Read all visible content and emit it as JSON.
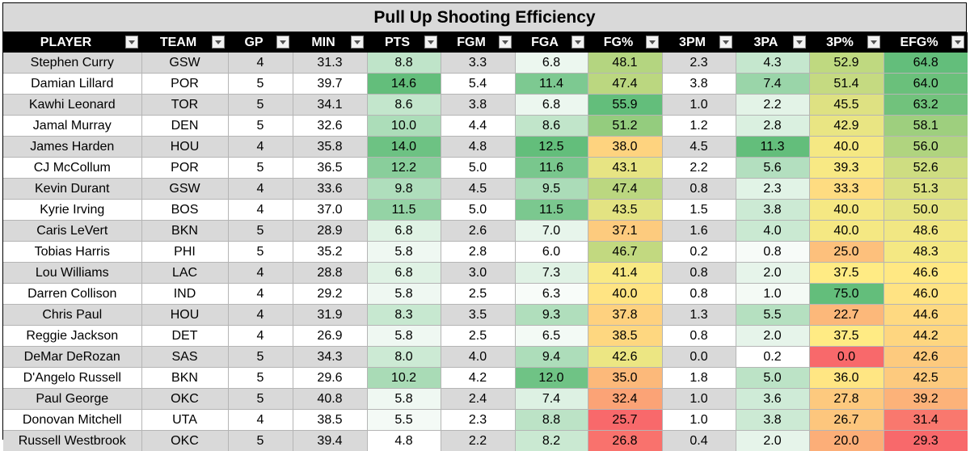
{
  "title": "Pull Up Shooting Efficiency",
  "columns": [
    "PLAYER",
    "TEAM",
    "GP",
    "MIN",
    "PTS",
    "FGM",
    "FGA",
    "FG%",
    "3PM",
    "3PA",
    "3P%",
    "EFG%"
  ],
  "heat_columns": [
    "PTS",
    "FGA",
    "FG%",
    "3PA",
    "3P%",
    "EFG%"
  ],
  "rows": [
    {
      "PLAYER": "Stephen Curry",
      "TEAM": "GSW",
      "GP": "4",
      "MIN": "31.3",
      "PTS": "8.8",
      "FGM": "3.3",
      "FGA": "6.8",
      "FG%": "48.1",
      "3PM": "2.3",
      "3PA": "4.3",
      "3P%": "52.9",
      "EFG%": "64.8"
    },
    {
      "PLAYER": "Damian Lillard",
      "TEAM": "POR",
      "GP": "5",
      "MIN": "39.7",
      "PTS": "14.6",
      "FGM": "5.4",
      "FGA": "11.4",
      "FG%": "47.4",
      "3PM": "3.8",
      "3PA": "7.4",
      "3P%": "51.4",
      "EFG%": "64.0"
    },
    {
      "PLAYER": "Kawhi Leonard",
      "TEAM": "TOR",
      "GP": "5",
      "MIN": "34.1",
      "PTS": "8.6",
      "FGM": "3.8",
      "FGA": "6.8",
      "FG%": "55.9",
      "3PM": "1.0",
      "3PA": "2.2",
      "3P%": "45.5",
      "EFG%": "63.2"
    },
    {
      "PLAYER": "Jamal Murray",
      "TEAM": "DEN",
      "GP": "5",
      "MIN": "32.6",
      "PTS": "10.0",
      "FGM": "4.4",
      "FGA": "8.6",
      "FG%": "51.2",
      "3PM": "1.2",
      "3PA": "2.8",
      "3P%": "42.9",
      "EFG%": "58.1"
    },
    {
      "PLAYER": "James Harden",
      "TEAM": "HOU",
      "GP": "4",
      "MIN": "35.8",
      "PTS": "14.0",
      "FGM": "4.8",
      "FGA": "12.5",
      "FG%": "38.0",
      "3PM": "4.5",
      "3PA": "11.3",
      "3P%": "40.0",
      "EFG%": "56.0"
    },
    {
      "PLAYER": "CJ McCollum",
      "TEAM": "POR",
      "GP": "5",
      "MIN": "36.5",
      "PTS": "12.2",
      "FGM": "5.0",
      "FGA": "11.6",
      "FG%": "43.1",
      "3PM": "2.2",
      "3PA": "5.6",
      "3P%": "39.3",
      "EFG%": "52.6"
    },
    {
      "PLAYER": "Kevin Durant",
      "TEAM": "GSW",
      "GP": "4",
      "MIN": "33.6",
      "PTS": "9.8",
      "FGM": "4.5",
      "FGA": "9.5",
      "FG%": "47.4",
      "3PM": "0.8",
      "3PA": "2.3",
      "3P%": "33.3",
      "EFG%": "51.3"
    },
    {
      "PLAYER": "Kyrie Irving",
      "TEAM": "BOS",
      "GP": "4",
      "MIN": "37.0",
      "PTS": "11.5",
      "FGM": "5.0",
      "FGA": "11.5",
      "FG%": "43.5",
      "3PM": "1.5",
      "3PA": "3.8",
      "3P%": "40.0",
      "EFG%": "50.0"
    },
    {
      "PLAYER": "Caris LeVert",
      "TEAM": "BKN",
      "GP": "5",
      "MIN": "28.9",
      "PTS": "6.8",
      "FGM": "2.6",
      "FGA": "7.0",
      "FG%": "37.1",
      "3PM": "1.6",
      "3PA": "4.0",
      "3P%": "40.0",
      "EFG%": "48.6"
    },
    {
      "PLAYER": "Tobias Harris",
      "TEAM": "PHI",
      "GP": "5",
      "MIN": "35.2",
      "PTS": "5.8",
      "FGM": "2.8",
      "FGA": "6.0",
      "FG%": "46.7",
      "3PM": "0.2",
      "3PA": "0.8",
      "3P%": "25.0",
      "EFG%": "48.3"
    },
    {
      "PLAYER": "Lou Williams",
      "TEAM": "LAC",
      "GP": "4",
      "MIN": "28.8",
      "PTS": "6.8",
      "FGM": "3.0",
      "FGA": "7.3",
      "FG%": "41.4",
      "3PM": "0.8",
      "3PA": "2.0",
      "3P%": "37.5",
      "EFG%": "46.6"
    },
    {
      "PLAYER": "Darren Collison",
      "TEAM": "IND",
      "GP": "4",
      "MIN": "29.2",
      "PTS": "5.8",
      "FGM": "2.5",
      "FGA": "6.3",
      "FG%": "40.0",
      "3PM": "0.8",
      "3PA": "1.0",
      "3P%": "75.0",
      "EFG%": "46.0"
    },
    {
      "PLAYER": "Chris Paul",
      "TEAM": "HOU",
      "GP": "4",
      "MIN": "31.9",
      "PTS": "8.3",
      "FGM": "3.5",
      "FGA": "9.3",
      "FG%": "37.8",
      "3PM": "1.3",
      "3PA": "5.5",
      "3P%": "22.7",
      "EFG%": "44.6"
    },
    {
      "PLAYER": "Reggie Jackson",
      "TEAM": "DET",
      "GP": "4",
      "MIN": "26.9",
      "PTS": "5.8",
      "FGM": "2.5",
      "FGA": "6.5",
      "FG%": "38.5",
      "3PM": "0.8",
      "3PA": "2.0",
      "3P%": "37.5",
      "EFG%": "44.2"
    },
    {
      "PLAYER": "DeMar DeRozan",
      "TEAM": "SAS",
      "GP": "5",
      "MIN": "34.3",
      "PTS": "8.0",
      "FGM": "4.0",
      "FGA": "9.4",
      "FG%": "42.6",
      "3PM": "0.0",
      "3PA": "0.2",
      "3P%": "0.0",
      "EFG%": "42.6"
    },
    {
      "PLAYER": "D'Angelo Russell",
      "TEAM": "BKN",
      "GP": "5",
      "MIN": "29.6",
      "PTS": "10.2",
      "FGM": "4.2",
      "FGA": "12.0",
      "FG%": "35.0",
      "3PM": "1.8",
      "3PA": "5.0",
      "3P%": "36.0",
      "EFG%": "42.5"
    },
    {
      "PLAYER": "Paul George",
      "TEAM": "OKC",
      "GP": "5",
      "MIN": "40.8",
      "PTS": "5.8",
      "FGM": "2.4",
      "FGA": "7.4",
      "FG%": "32.4",
      "3PM": "1.0",
      "3PA": "3.6",
      "3P%": "27.8",
      "EFG%": "39.2"
    },
    {
      "PLAYER": "Donovan Mitchell",
      "TEAM": "UTA",
      "GP": "4",
      "MIN": "38.5",
      "PTS": "5.5",
      "FGM": "2.3",
      "FGA": "8.8",
      "FG%": "25.7",
      "3PM": "1.0",
      "3PA": "3.8",
      "3P%": "26.7",
      "EFG%": "31.4"
    },
    {
      "PLAYER": "Russell Westbrook",
      "TEAM": "OKC",
      "GP": "5",
      "MIN": "39.4",
      "PTS": "4.8",
      "FGM": "2.2",
      "FGA": "8.2",
      "FG%": "26.8",
      "3PM": "0.4",
      "3PA": "2.0",
      "3P%": "20.0",
      "EFG%": "29.3"
    }
  ],
  "colors": {
    "header_bg": "#000000",
    "title_bg": "#d9d9d9",
    "row_shade": "#d9d9d9",
    "scale_green_light": "#ffffff",
    "scale_green_dark": "#63be7b",
    "scale_red": "#f8696b",
    "scale_yellow": "#ffeb84"
  }
}
